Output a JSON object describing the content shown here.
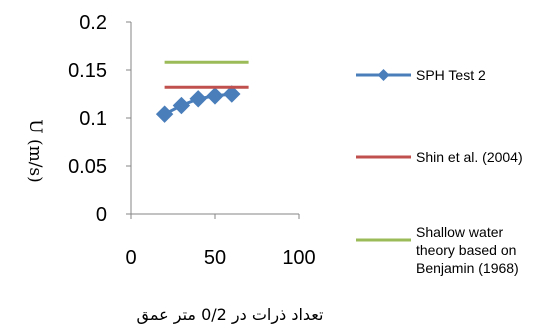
{
  "chart_data": {
    "type": "line",
    "title": "",
    "xlabel": "تعداد ذرات در 0/2 متر عمق",
    "ylabel": "U (m/s)",
    "xlim": [
      0,
      100
    ],
    "ylim": [
      0,
      0.2
    ],
    "x_ticks": [
      "0",
      "50",
      "100"
    ],
    "y_ticks": [
      "0",
      "0.05",
      "0.1",
      "0.15",
      "0.2"
    ],
    "grid": false,
    "legend_position": "right",
    "series": [
      {
        "name": "SPH Test 2",
        "kind": "line-markers",
        "color": "#4a7ebb",
        "marker": "diamond",
        "x": [
          20,
          30,
          40,
          50,
          60
        ],
        "y": [
          0.104,
          0.113,
          0.12,
          0.123,
          0.125
        ]
      },
      {
        "name": "Shin et al. (2004)",
        "kind": "line",
        "color": "#c0504d",
        "x": [
          20,
          70
        ],
        "y": [
          0.132,
          0.132
        ]
      },
      {
        "name": "Shallow water theory based on Benjamin (1968)",
        "legend_lines": [
          "Shallow water",
          "theory based on",
          "Benjamin (1968)"
        ],
        "kind": "line",
        "color": "#9bbb59",
        "x": [
          20,
          70
        ],
        "y": [
          0.158,
          0.158
        ]
      }
    ]
  }
}
